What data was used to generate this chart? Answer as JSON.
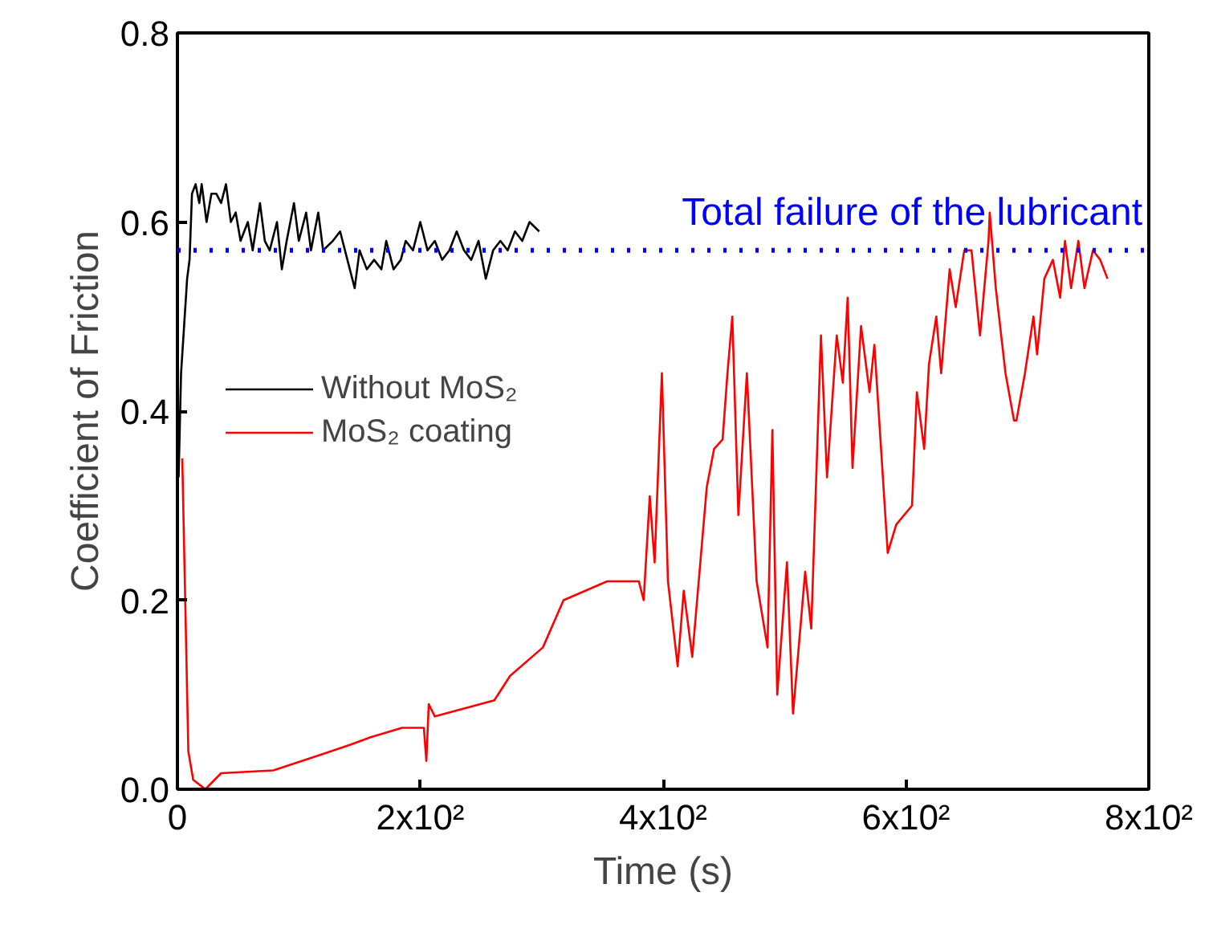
{
  "chart_data": {
    "type": "line",
    "xlabel": "Time (s)",
    "ylabel": "Coefficient of Friction",
    "xlim": [
      0,
      800
    ],
    "ylim": [
      0,
      0.8
    ],
    "xticks": [
      0,
      {
        "value": 200,
        "label": "2x10²"
      },
      {
        "value": 400,
        "label": "4x10²"
      },
      {
        "value": 600,
        "label": "6x10²"
      },
      {
        "value": 800,
        "label": "8x10²"
      }
    ],
    "yticks": [
      {
        "value": 0,
        "label": "0.0"
      },
      {
        "value": 0.2,
        "label": "0.2"
      },
      {
        "value": 0.4,
        "label": "0.4"
      },
      {
        "value": 0.6,
        "label": "0.6"
      },
      {
        "value": 0.8,
        "label": "0.8"
      }
    ],
    "grid": false,
    "legend": "left",
    "line_style": "solid",
    "marker": "none",
    "ref_lines": [
      {
        "axis": "y",
        "value": 0.57,
        "label": "Total failure of the lubricant",
        "color": "#0000ff",
        "line_style": "dotted"
      }
    ],
    "series": [
      {
        "name": "Without MoS₂",
        "color": "#000000",
        "x": [
          1,
          3,
          5,
          8,
          10,
          12,
          15,
          18,
          20,
          24,
          28,
          32,
          36,
          40,
          44,
          48,
          52,
          58,
          62,
          68,
          72,
          76,
          82,
          86,
          90,
          96,
          100,
          106,
          110,
          116,
          120,
          128,
          134,
          140,
          146,
          150,
          156,
          162,
          168,
          172,
          178,
          184,
          188,
          194,
          200,
          206,
          212,
          218,
          224,
          230,
          236,
          242,
          248,
          254,
          260,
          266,
          272,
          278,
          284,
          290,
          298
        ],
        "values": [
          0.33,
          0.44,
          0.48,
          0.54,
          0.56,
          0.63,
          0.64,
          0.62,
          0.64,
          0.6,
          0.63,
          0.63,
          0.62,
          0.64,
          0.6,
          0.61,
          0.58,
          0.6,
          0.57,
          0.62,
          0.58,
          0.57,
          0.6,
          0.55,
          0.58,
          0.62,
          0.58,
          0.61,
          0.57,
          0.61,
          0.57,
          0.58,
          0.59,
          0.56,
          0.53,
          0.57,
          0.55,
          0.56,
          0.55,
          0.58,
          0.55,
          0.56,
          0.58,
          0.57,
          0.6,
          0.57,
          0.58,
          0.56,
          0.57,
          0.59,
          0.57,
          0.56,
          0.58,
          0.54,
          0.57,
          0.58,
          0.57,
          0.59,
          0.58,
          0.6,
          0.59
        ]
      },
      {
        "name": "MoS₂ coating",
        "color": "#ff0000",
        "x": [
          4,
          9,
          13,
          23,
          36,
          79,
          119,
          142,
          159,
          185,
          203,
          205,
          207,
          212,
          261,
          274,
          301,
          318,
          354,
          380,
          384,
          389,
          393,
          399,
          404,
          412,
          417,
          424,
          436,
          442,
          449,
          453,
          457,
          462,
          469,
          477,
          486,
          490,
          494,
          502,
          507,
          513,
          517,
          522,
          530,
          535,
          543,
          548,
          552,
          556,
          563,
          570,
          574,
          581,
          585,
          592,
          605,
          609,
          615,
          619,
          625,
          629,
          636,
          641,
          648,
          654,
          661,
          668,
          669,
          674,
          682,
          689,
          691,
          698,
          705,
          708,
          714,
          721,
          727,
          731,
          736,
          742,
          747,
          754,
          760,
          766
        ],
        "values": [
          0.35,
          0.04,
          0.01,
          0.0,
          0.017,
          0.02,
          0.037,
          0.047,
          0.055,
          0.065,
          0.065,
          0.03,
          0.09,
          0.077,
          0.094,
          0.12,
          0.15,
          0.2,
          0.22,
          0.22,
          0.2,
          0.31,
          0.24,
          0.44,
          0.22,
          0.13,
          0.21,
          0.14,
          0.32,
          0.36,
          0.37,
          0.44,
          0.5,
          0.29,
          0.44,
          0.22,
          0.15,
          0.38,
          0.1,
          0.24,
          0.08,
          0.17,
          0.23,
          0.17,
          0.48,
          0.33,
          0.48,
          0.43,
          0.52,
          0.34,
          0.49,
          0.42,
          0.47,
          0.33,
          0.25,
          0.28,
          0.3,
          0.42,
          0.36,
          0.45,
          0.5,
          0.44,
          0.55,
          0.51,
          0.57,
          0.57,
          0.48,
          0.58,
          0.61,
          0.53,
          0.44,
          0.39,
          0.39,
          0.44,
          0.5,
          0.46,
          0.54,
          0.56,
          0.52,
          0.58,
          0.53,
          0.58,
          0.53,
          0.57,
          0.56,
          0.54
        ]
      }
    ]
  }
}
